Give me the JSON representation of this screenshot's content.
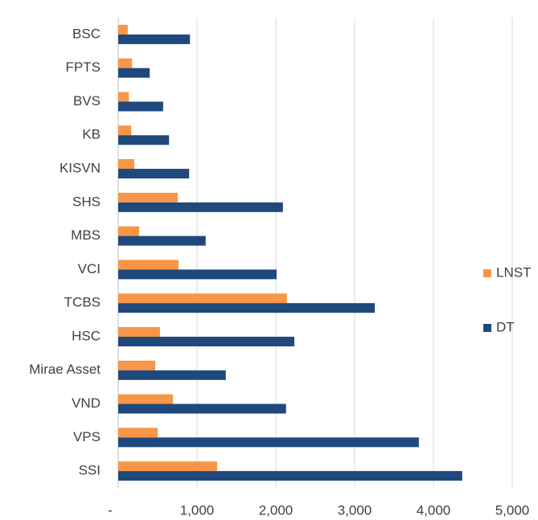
{
  "chart_data": {
    "type": "barh",
    "categories": [
      "BSC",
      "FPTS",
      "BVS",
      "KB",
      "KISVN",
      "SHS",
      "MBS",
      "VCI",
      "TCBS",
      "HSC",
      "Mirae Asset",
      "VND",
      "VPS",
      "SSI"
    ],
    "series": [
      {
        "name": "LNST",
        "color": "#f79646",
        "values": [
          120,
          175,
          135,
          165,
          205,
          755,
          265,
          765,
          2140,
          530,
          470,
          695,
          500,
          1255
        ]
      },
      {
        "name": "DT",
        "color": "#1f497d",
        "values": [
          910,
          400,
          570,
          645,
          900,
          2090,
          1110,
          2010,
          3255,
          2235,
          1365,
          2130,
          3815,
          4365
        ]
      }
    ],
    "xlim": [
      0,
      5000
    ],
    "xticks": [
      {
        "value": 0,
        "label": "-"
      },
      {
        "value": 1000,
        "label": "1,000"
      },
      {
        "value": 2000,
        "label": "2,000"
      },
      {
        "value": 3000,
        "label": "3,000"
      },
      {
        "value": 4000,
        "label": "4,000"
      },
      {
        "value": 5000,
        "label": "5,000"
      }
    ],
    "grid": true,
    "legend": "right"
  }
}
